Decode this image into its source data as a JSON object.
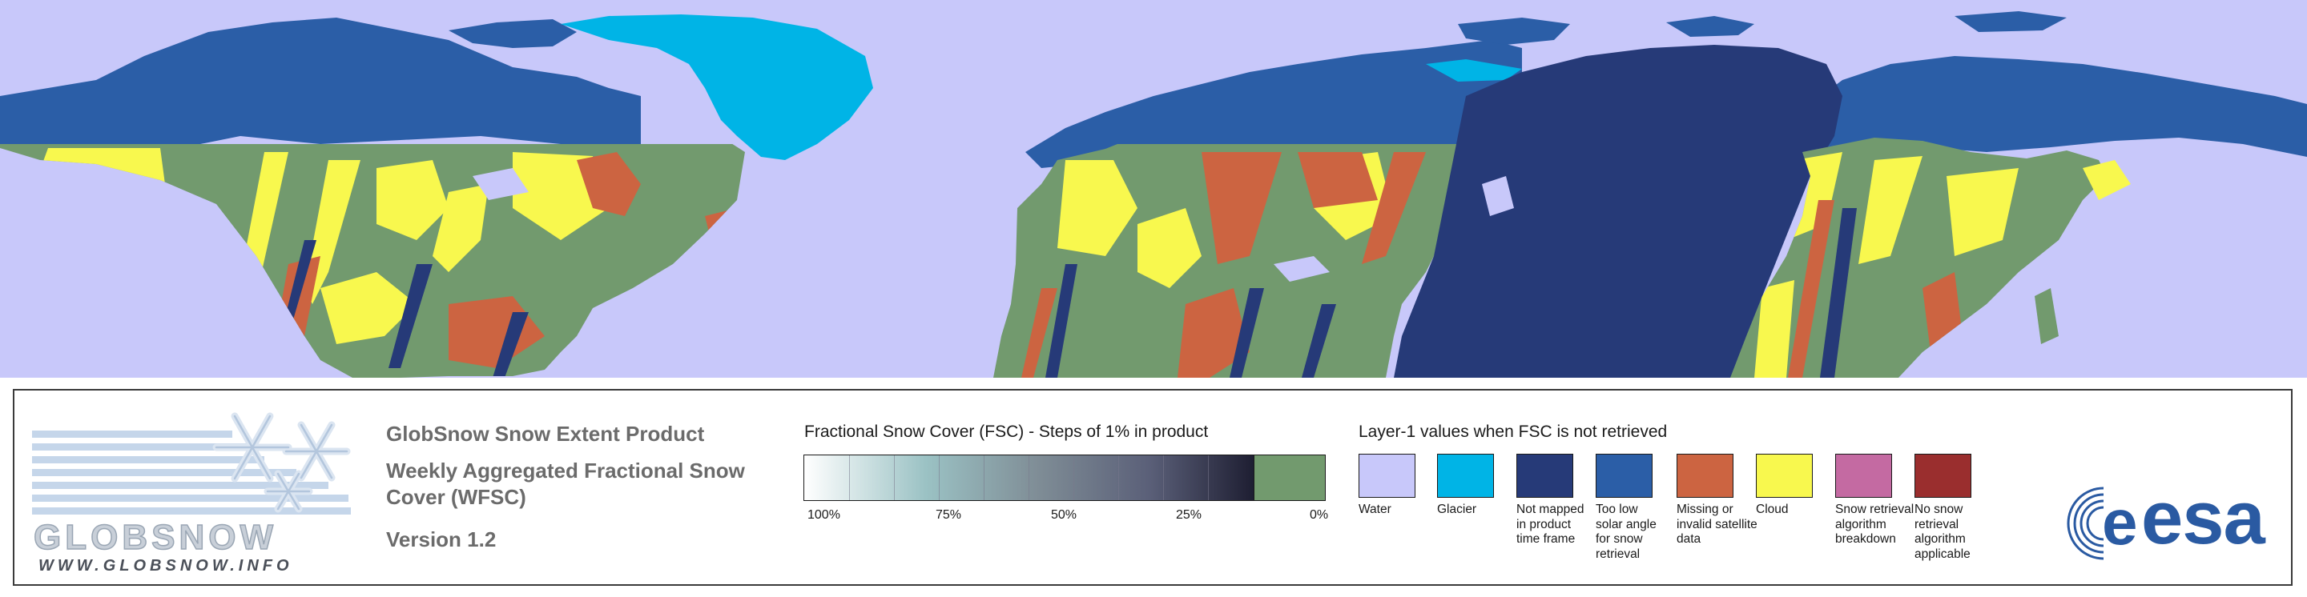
{
  "map": {
    "colors": {
      "ocean": "#c8c8fa",
      "glacier": "#00b4e6",
      "not_mapped": "#263a78",
      "low_solar": "#2b5ea7",
      "missing": "#cc6441",
      "cloud": "#f8f84e",
      "fsc_zero": "#729a6e",
      "snow_breakdown": "#c46aa2",
      "no_retrieval": "#9a2e2e"
    }
  },
  "logo_left": {
    "wordmark": "GLOBSNOW",
    "url": "WWW.GLOBSNOW.INFO"
  },
  "product": {
    "title": "GlobSnow Snow Extent Product",
    "subtitle": "Weekly Aggregated Fractional Snow Cover (WFSC)",
    "version": "Version 1.2"
  },
  "fsc_legend": {
    "title": "Fractional Snow Cover (FSC) - Steps of 1% in product",
    "tick_labels": [
      "100%",
      "75%",
      "50%",
      "25%",
      "0%"
    ]
  },
  "layer_legend": {
    "title": "Layer-1 values when FSC is not retrieved",
    "items": [
      {
        "label": "Water",
        "color": "#c8c8fa"
      },
      {
        "label": "Glacier",
        "color": "#00b4e6"
      },
      {
        "label": "Not mapped in product time frame",
        "color": "#263a78"
      },
      {
        "label": "Too low solar angle for snow retrieval",
        "color": "#2b5ea7"
      },
      {
        "label": "Missing or invalid satellite data",
        "color": "#cc6441"
      },
      {
        "label": "Cloud",
        "color": "#f8f84e"
      },
      {
        "label": "Snow retrieval algorithm breakdown",
        "color": "#c46aa2"
      },
      {
        "label": "No snow retrieval algorithm applicable",
        "color": "#9a2e2e"
      }
    ]
  },
  "logo_right": {
    "wordmark": "esa"
  }
}
